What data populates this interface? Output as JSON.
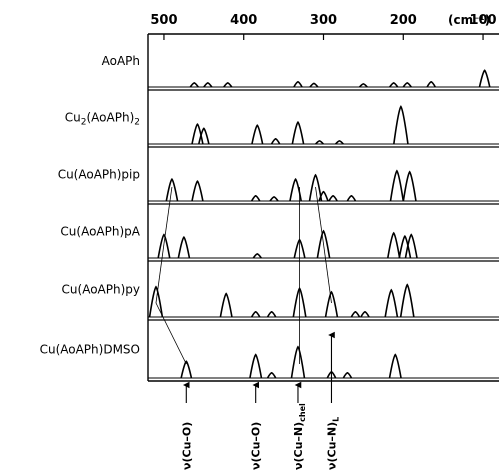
{
  "chart_data": {
    "type": "line",
    "title": "",
    "xlabel": "",
    "ylabel": "",
    "x_unit_label": "(cm⁻¹)",
    "xlim": [
      520,
      80
    ],
    "x_ticks": [
      500,
      400,
      300,
      200,
      100
    ],
    "x_tick_labels": [
      "500",
      "400",
      "300",
      "200",
      "100"
    ],
    "grid": false,
    "legend": "none",
    "color": "#000000",
    "series": [
      {
        "name": "AoAPh",
        "label_main": "AoAPh",
        "label_sub": "",
        "label_tail": "",
        "peaks": [
          {
            "x": 462,
            "h": 0.08
          },
          {
            "x": 445,
            "h": 0.08
          },
          {
            "x": 420,
            "h": 0.08
          },
          {
            "x": 332,
            "h": 0.1
          },
          {
            "x": 312,
            "h": 0.07
          },
          {
            "x": 250,
            "h": 0.06
          },
          {
            "x": 212,
            "h": 0.08
          },
          {
            "x": 195,
            "h": 0.08
          },
          {
            "x": 165,
            "h": 0.1
          },
          {
            "x": 98,
            "h": 0.32
          }
        ]
      },
      {
        "name": "Cu2(AoAPh)2",
        "label_main": "Cu",
        "label_sub": "2",
        "label_tail": "(AoAPh)",
        "label_sub2": "2",
        "peaks": [
          {
            "x": 458,
            "h": 0.38
          },
          {
            "x": 450,
            "h": 0.3
          },
          {
            "x": 383,
            "h": 0.36
          },
          {
            "x": 360,
            "h": 0.1
          },
          {
            "x": 332,
            "h": 0.42
          },
          {
            "x": 305,
            "h": 0.06
          },
          {
            "x": 280,
            "h": 0.06
          },
          {
            "x": 203,
            "h": 0.72
          }
        ]
      },
      {
        "name": "Cu(AoAPh)pip",
        "label_main": "Cu(AoAPh)pip",
        "label_sub": "",
        "label_tail": "",
        "peaks": [
          {
            "x": 490,
            "h": 0.42
          },
          {
            "x": 458,
            "h": 0.38
          },
          {
            "x": 385,
            "h": 0.1
          },
          {
            "x": 362,
            "h": 0.08
          },
          {
            "x": 335,
            "h": 0.42
          },
          {
            "x": 310,
            "h": 0.5
          },
          {
            "x": 300,
            "h": 0.18
          },
          {
            "x": 288,
            "h": 0.1
          },
          {
            "x": 265,
            "h": 0.1
          },
          {
            "x": 208,
            "h": 0.58
          },
          {
            "x": 192,
            "h": 0.56
          }
        ]
      },
      {
        "name": "Cu(AoAPh)pA",
        "label_main": "Cu(AoAPh)pA",
        "label_sub": "",
        "label_tail": "",
        "peaks": [
          {
            "x": 500,
            "h": 0.45
          },
          {
            "x": 475,
            "h": 0.4
          },
          {
            "x": 383,
            "h": 0.08
          },
          {
            "x": 330,
            "h": 0.35
          },
          {
            "x": 300,
            "h": 0.52
          },
          {
            "x": 212,
            "h": 0.48
          },
          {
            "x": 198,
            "h": 0.42
          },
          {
            "x": 190,
            "h": 0.45
          }
        ]
      },
      {
        "name": "Cu(AoAPh)py",
        "label_main": "Cu(AoAPh)py",
        "label_sub": "",
        "label_tail": "",
        "peaks": [
          {
            "x": 510,
            "h": 0.58
          },
          {
            "x": 422,
            "h": 0.45
          },
          {
            "x": 385,
            "h": 0.1
          },
          {
            "x": 365,
            "h": 0.1
          },
          {
            "x": 330,
            "h": 0.55
          },
          {
            "x": 290,
            "h": 0.48
          },
          {
            "x": 260,
            "h": 0.1
          },
          {
            "x": 248,
            "h": 0.1
          },
          {
            "x": 215,
            "h": 0.52
          },
          {
            "x": 195,
            "h": 0.62
          }
        ]
      },
      {
        "name": "Cu(AoAPh)DMSO",
        "label_main": "Cu(AoAPh)DMSO",
        "label_sub": "",
        "label_tail": "",
        "peaks": [
          {
            "x": 472,
            "h": 0.32
          },
          {
            "x": 385,
            "h": 0.45
          },
          {
            "x": 365,
            "h": 0.1
          },
          {
            "x": 332,
            "h": 0.6
          },
          {
            "x": 290,
            "h": 0.12
          },
          {
            "x": 270,
            "h": 0.1
          },
          {
            "x": 210,
            "h": 0.45
          }
        ]
      }
    ],
    "correlation_lines": [
      {
        "from_series": 2,
        "x_top": 490,
        "to_series": 3,
        "x_bottom": 500
      },
      {
        "from_series": 3,
        "x_top": 500,
        "to_series": 4,
        "x_bottom": 510
      },
      {
        "from_series": 4,
        "x_top": 510,
        "to_series": 5,
        "x_bottom": 472
      },
      {
        "from_series": 2,
        "x_top": 330,
        "to_series": 5,
        "x_bottom": 330
      },
      {
        "from_series": 2,
        "x_top": 310,
        "to_series": 3,
        "x_bottom": 300
      },
      {
        "from_series": 3,
        "x_top": 300,
        "to_series": 4,
        "x_bottom": 290
      }
    ],
    "annotations": [
      {
        "x": 472,
        "label": "ν(Cu–O)",
        "sub": "",
        "arrow": "bottom"
      },
      {
        "x": 385,
        "label": "ν(Cu–O)",
        "sub": "",
        "arrow": "bottom"
      },
      {
        "x": 332,
        "label": "ν(Cu–N)",
        "sub": "chel",
        "arrow": "bottom"
      },
      {
        "x": 290,
        "label": "ν(Cu–N)",
        "sub": "L",
        "arrow": "long"
      }
    ]
  }
}
